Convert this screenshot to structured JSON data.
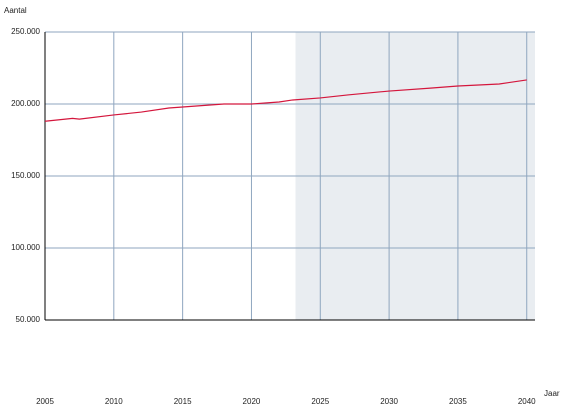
{
  "chart_data": {
    "type": "line",
    "y_label": "Aantal",
    "x_label": "Jaar",
    "x": [
      2005,
      2007,
      2007.5,
      2010,
      2012,
      2014,
      2016,
      2018,
      2020,
      2021,
      2022,
      2023,
      2025,
      2027,
      2030,
      2033,
      2035,
      2038,
      2040
    ],
    "series": [
      {
        "name": "Aantal",
        "color": "#d4163c",
        "values": [
          188000,
          190000,
          189500,
          192400,
          194400,
          197200,
          198600,
          200000,
          200000,
          200700,
          201400,
          202800,
          204200,
          206300,
          209000,
          211000,
          212500,
          213900,
          216700
        ]
      }
    ],
    "xlim": [
      2005,
      2040.6
    ],
    "xticks": [
      2005,
      2010,
      2015,
      2020,
      2025,
      2030,
      2035,
      2040
    ],
    "ylim": [
      50000,
      250000
    ],
    "yticks": [
      {
        "value": 250000,
        "label": "250.000"
      },
      {
        "value": 200000,
        "label": "200.000"
      },
      {
        "value": 150000,
        "label": "150.000"
      },
      {
        "value": 100000,
        "label": "100.000"
      },
      {
        "value": 50000,
        "label": "50.000"
      }
    ],
    "shaded_region": [
      2023.2,
      2040.6
    ],
    "shade_color": "#e9edf1",
    "grid": true
  }
}
